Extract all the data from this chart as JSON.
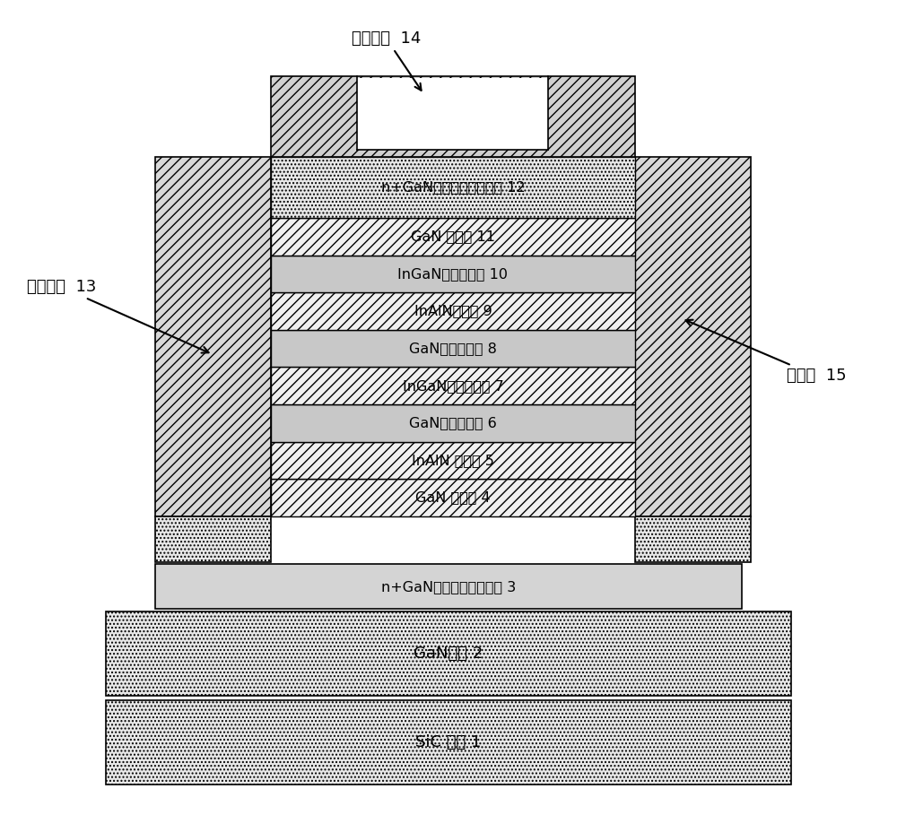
{
  "fig_width": 10.0,
  "fig_height": 9.09,
  "bg_color": "#ffffff",
  "font_name": "SimHei",
  "sic_label": "SiC 衬底 1",
  "gan_epi_label": "GaN外延 2",
  "collector_label": "n+GaN集电极欧姆接触区 3",
  "mesa_layers": [
    {
      "label": "GaN 隔离区 4",
      "fc": "#f0f0f0",
      "hatch": "///",
      "thick": 1
    },
    {
      "label": "InAlN 势垒区 5",
      "fc": "#f0f0f0",
      "hatch": "///",
      "thick": 1
    },
    {
      "label": "GaN主量子阱区 6",
      "fc": "#c8c8c8",
      "hatch": "",
      "thick": 1
    },
    {
      "label": "InGaN子量子阱区 7",
      "fc": "#f0f0f0",
      "hatch": "///",
      "thick": 1
    },
    {
      "label": "GaN主量子阱区 8",
      "fc": "#c8c8c8",
      "hatch": "",
      "thick": 1
    },
    {
      "label": "InAlN势垒区 9",
      "fc": "#f0f0f0",
      "hatch": "///",
      "thick": 1
    },
    {
      "label": "InGaN子量子阱区 10",
      "fc": "#c8c8c8",
      "hatch": "",
      "thick": 1
    },
    {
      "label": "GaN 隔离区 11",
      "fc": "#f0f0f0",
      "hatch": "///",
      "thick": 1
    },
    {
      "label": "n+GaN发射极欧姆接触区 12",
      "fc": "#e8e8e8",
      "hatch": "....",
      "thick": 2
    }
  ],
  "ann_circ_label": "圆形电极  14",
  "ann_ring_label": "环形电极  13",
  "ann_pass_label": "钝化层  15"
}
